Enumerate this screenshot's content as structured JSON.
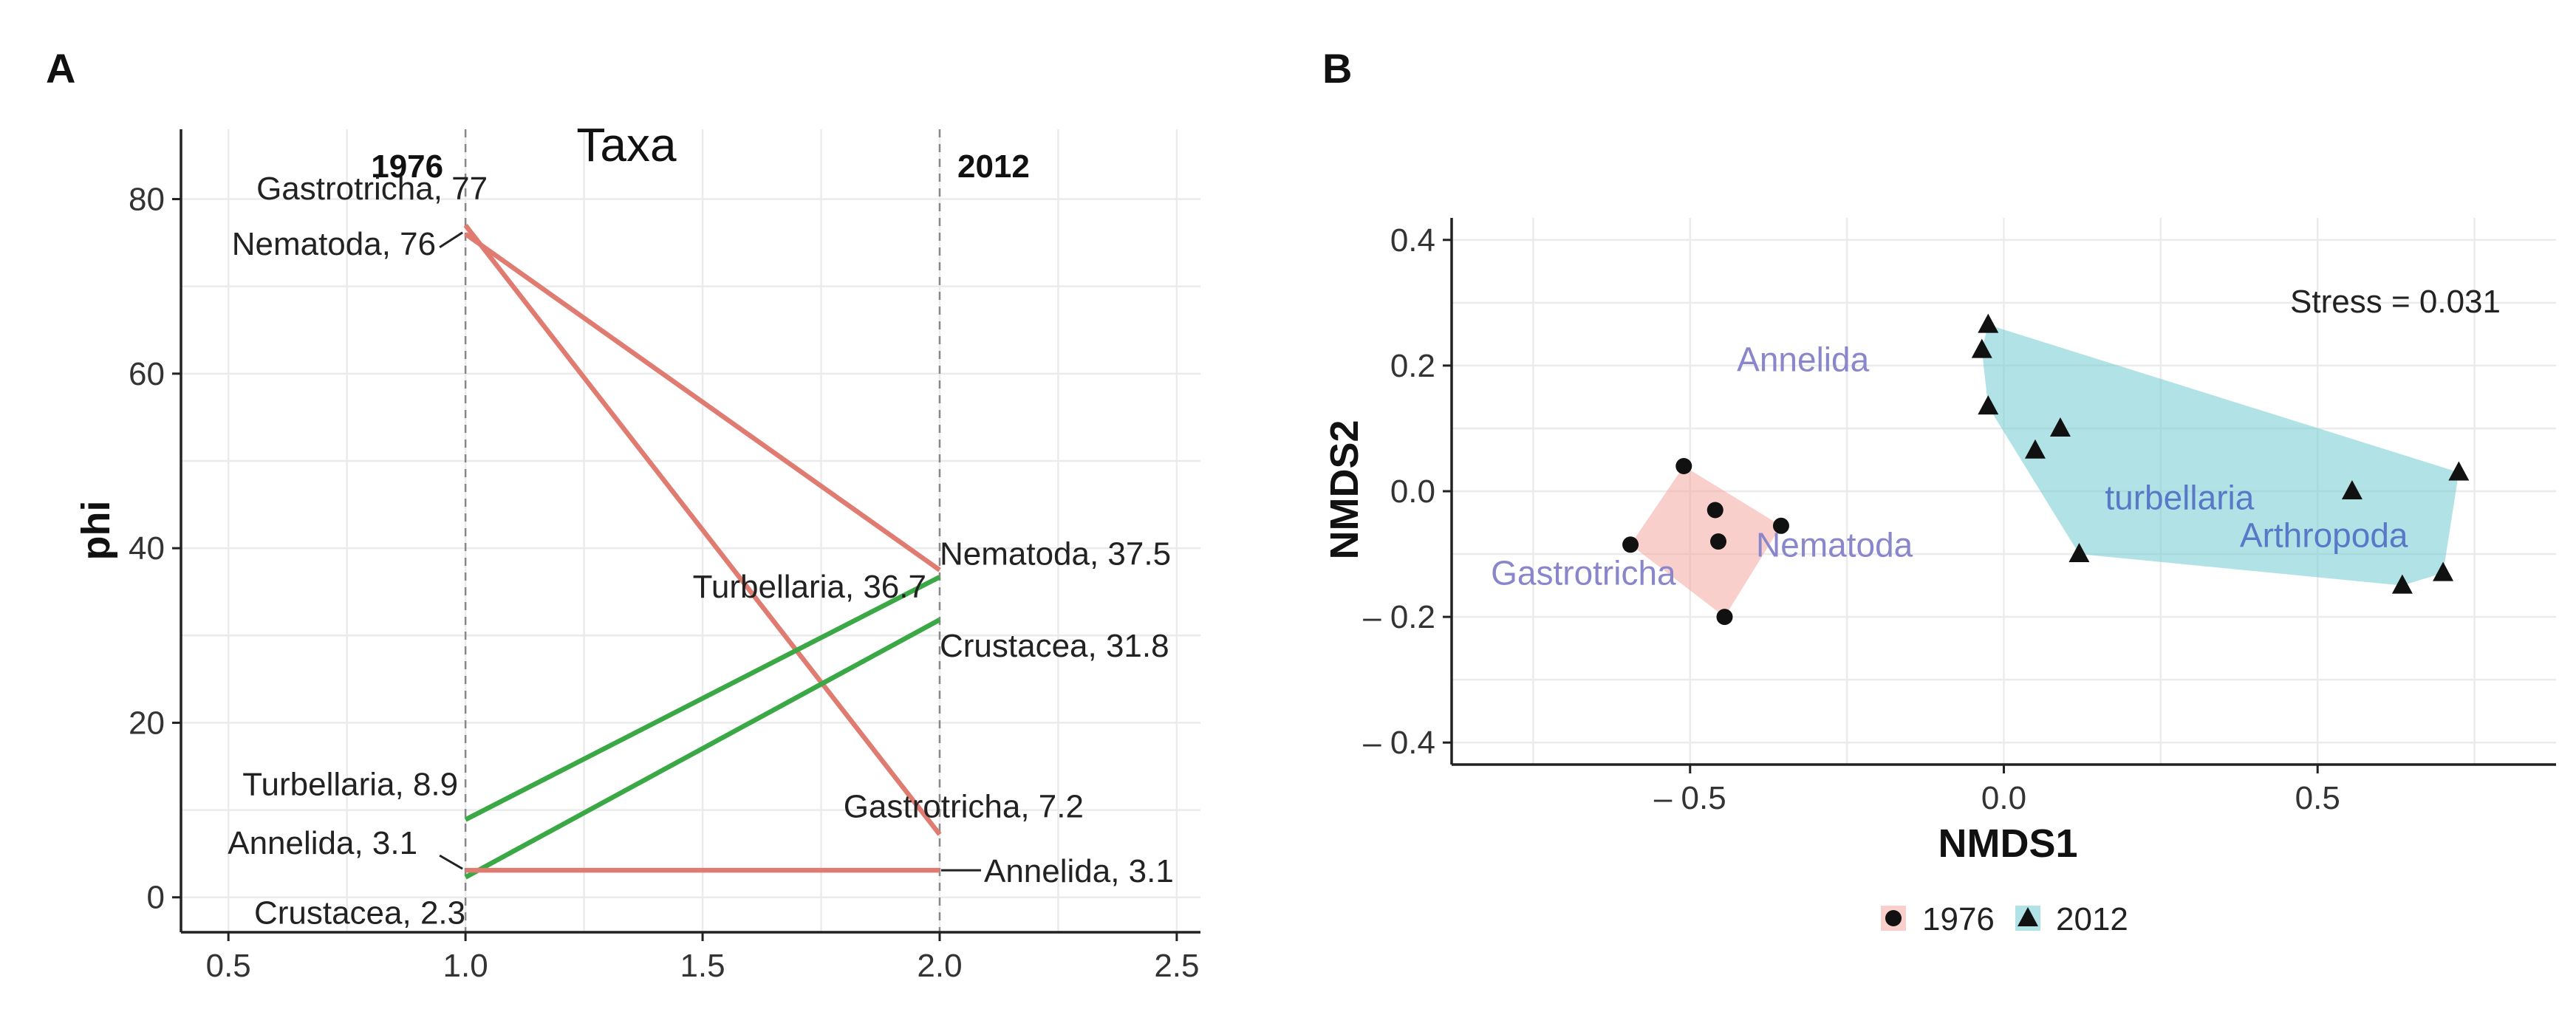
{
  "chart_data": [
    {
      "panel": "A",
      "type": "line",
      "title": "Taxa",
      "ylabel": "phi",
      "xlabel": "",
      "xlim": [
        0.4,
        2.55
      ],
      "ylim": [
        -4,
        88
      ],
      "xticks": [
        0.5,
        1.0,
        1.5,
        2.0,
        2.5
      ],
      "xtick_labels": [
        "0.5",
        "1.0",
        "1.5",
        "2.0",
        "2.5"
      ],
      "yticks": [
        0,
        20,
        40,
        60,
        80
      ],
      "ytick_labels": [
        "0",
        "20",
        "40",
        "60",
        "80"
      ],
      "year_labels": [
        {
          "x": 1.0,
          "text": "1976"
        },
        {
          "x": 2.0,
          "text": "2012"
        }
      ],
      "colors": {
        "decrease": "#e07b72",
        "increase": "#3aa845"
      },
      "series": [
        {
          "name": "Gastrotricha",
          "x": [
            1,
            2
          ],
          "values": [
            77,
            7.2
          ],
          "trend": "decrease",
          "start_label": "Gastrotricha, 77",
          "end_label": "Gastrotricha, 7.2"
        },
        {
          "name": "Nematoda",
          "x": [
            1,
            2
          ],
          "values": [
            76,
            37.5
          ],
          "trend": "decrease",
          "start_label": "Nematoda, 76",
          "end_label": "Nematoda, 37.5"
        },
        {
          "name": "Turbellaria",
          "x": [
            1,
            2
          ],
          "values": [
            8.9,
            36.7
          ],
          "trend": "increase",
          "start_label": "Turbellaria, 8.9",
          "end_label": "Turbellaria, 36.7"
        },
        {
          "name": "Crustacea",
          "x": [
            1,
            2
          ],
          "values": [
            2.3,
            31.8
          ],
          "trend": "increase",
          "start_label": "Crustacea, 2.3",
          "end_label": "Crustacea, 31.8"
        },
        {
          "name": "Annelida",
          "x": [
            1,
            2
          ],
          "values": [
            3.1,
            3.1
          ],
          "trend": "decrease",
          "start_label": "Annelida, 3.1",
          "end_label": "Annelida, 3.1"
        }
      ]
    },
    {
      "panel": "B",
      "type": "scatter",
      "xlabel": "NMDS1",
      "ylabel": "NMDS2",
      "xlim": [
        -0.88,
        0.88
      ],
      "ylim": [
        -0.435,
        0.435
      ],
      "xticks": [
        -0.5,
        0.0,
        0.5
      ],
      "xtick_labels": [
        "– 0.5",
        "0.0",
        "0.5"
      ],
      "yticks": [
        0.4,
        0.2,
        0.0,
        -0.2,
        -0.4
      ],
      "ytick_labels": [
        "0.4",
        "0.2",
        "0.0",
        "– 0.2",
        "– 0.4"
      ],
      "stress_label": "Stress =  0.031",
      "hull_colors": {
        "1976": "#f4a7a2",
        "2012": "#6fcad2"
      },
      "legend": {
        "position": "bottom",
        "entries": [
          "1976",
          "2012"
        ]
      },
      "groups": [
        {
          "name": "1976",
          "marker": "circle",
          "points": [
            [
              -0.51,
              0.04
            ],
            [
              -0.46,
              -0.03
            ],
            [
              -0.455,
              -0.08
            ],
            [
              -0.355,
              -0.055
            ],
            [
              -0.595,
              -0.085
            ],
            [
              -0.445,
              -0.2
            ]
          ]
        },
        {
          "name": "2012",
          "marker": "triangle",
          "points": [
            [
              -0.025,
              0.265
            ],
            [
              -0.035,
              0.225
            ],
            [
              -0.025,
              0.135
            ],
            [
              0.05,
              0.065
            ],
            [
              0.09,
              0.1
            ],
            [
              0.12,
              -0.1
            ],
            [
              0.555,
              0.0
            ],
            [
              0.725,
              0.03
            ],
            [
              0.635,
              -0.15
            ],
            [
              0.7,
              -0.13
            ]
          ]
        }
      ],
      "species_labels": [
        {
          "text": "Annelida",
          "x": -0.32,
          "y": 0.21
        },
        {
          "text": "Nematoda",
          "x": -0.27,
          "y": -0.085
        },
        {
          "text": "Gastrotricha",
          "x": -0.67,
          "y": -0.13
        },
        {
          "text": "turbellaria",
          "x": 0.28,
          "y": -0.01
        },
        {
          "text": "Arthropoda",
          "x": 0.51,
          "y": -0.07
        }
      ]
    }
  ]
}
